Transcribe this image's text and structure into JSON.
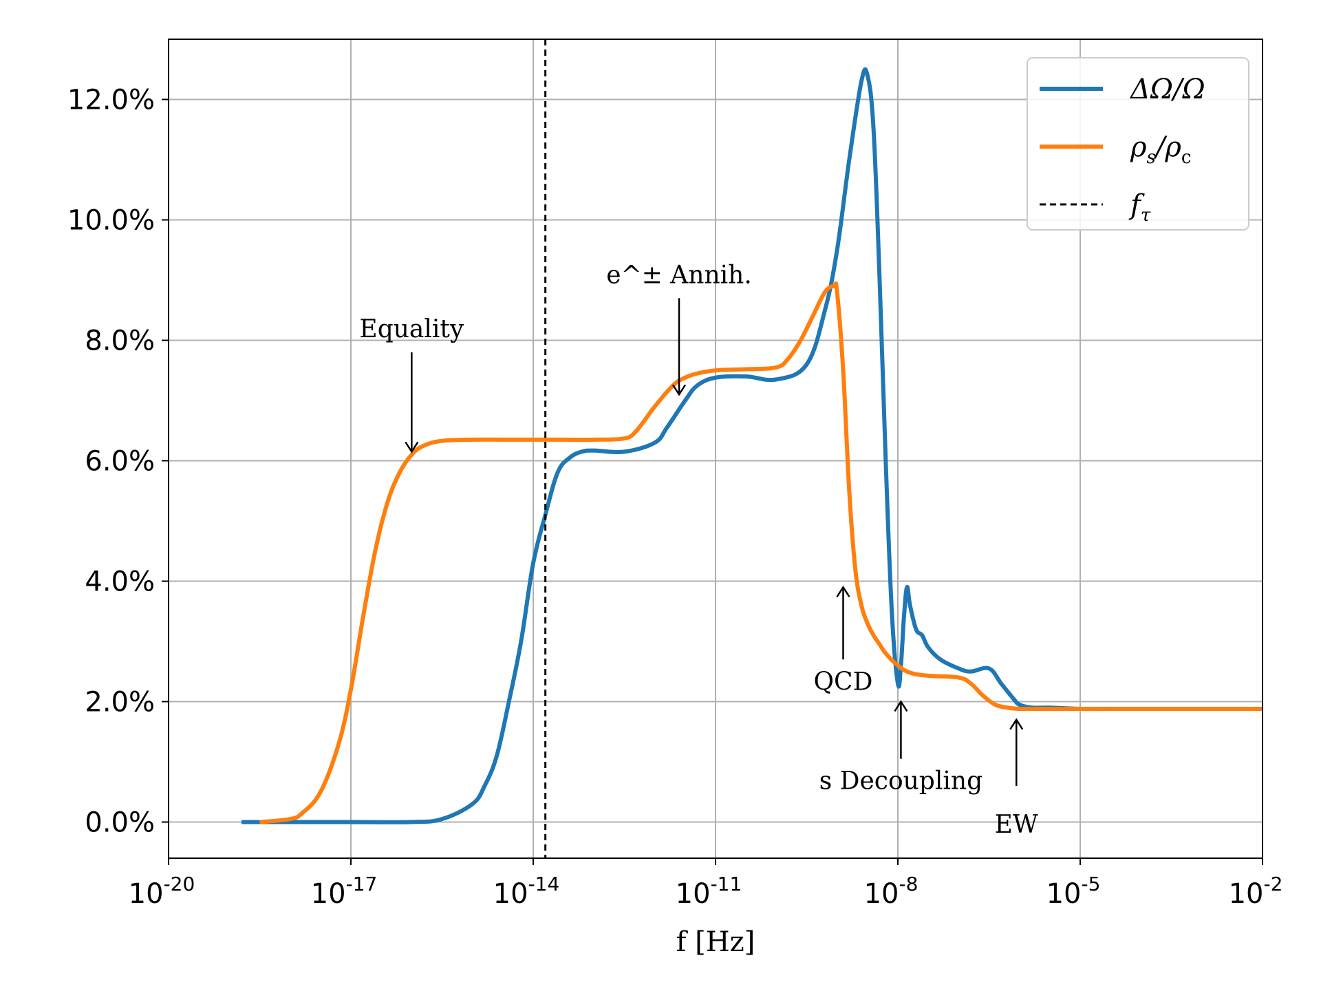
{
  "chart_data": {
    "type": "line",
    "xlabel": "f [Hz]",
    "xscale": "log",
    "xlim_exp": [
      -20,
      -2
    ],
    "x_ticks": [
      {
        "base": "10",
        "exp": "-20"
      },
      {
        "base": "10",
        "exp": "-17"
      },
      {
        "base": "10",
        "exp": "-14"
      },
      {
        "base": "10",
        "exp": "-11"
      },
      {
        "base": "10",
        "exp": "-8"
      },
      {
        "base": "10",
        "exp": "-5"
      },
      {
        "base": "10",
        "exp": "-2"
      }
    ],
    "ylim": [
      -0.6,
      13.0
    ],
    "y_ticks": [
      "0.0%",
      "2.0%",
      "4.0%",
      "6.0%",
      "8.0%",
      "10.0%",
      "12.0%"
    ],
    "grid": true,
    "legend_position": "top-right",
    "series": [
      {
        "name": "ΔΩ/Ω",
        "color": "#1f77b4",
        "x_log10": [
          -18.8,
          -17,
          -16,
          -15.5,
          -15,
          -14.8,
          -14.6,
          -14.4,
          -14.2,
          -14.0,
          -13.8,
          -13.6,
          -13.4,
          -13.2,
          -13.0,
          -12.5,
          -12.0,
          -11.8,
          -11.5,
          -11.3,
          -11.0,
          -10.5,
          -10.0,
          -9.5,
          -9.2,
          -9.0,
          -8.8,
          -8.6,
          -8.5,
          -8.4,
          -8.3,
          -8.2,
          -8.1,
          -8.0,
          -7.95,
          -7.9,
          -7.85,
          -7.8,
          -7.7,
          -7.6,
          -7.5,
          -7.3,
          -7.0,
          -6.8,
          -6.5,
          -6.3,
          -6.1,
          -6.0,
          -5.8,
          -5.5,
          -5.0,
          -4.5,
          -4.0,
          -3.0,
          -2.0
        ],
        "y": [
          0.0,
          0.0,
          0.0,
          0.05,
          0.3,
          0.6,
          1.1,
          2.0,
          3.0,
          4.3,
          5.1,
          5.8,
          6.05,
          6.15,
          6.17,
          6.15,
          6.3,
          6.55,
          7.0,
          7.25,
          7.38,
          7.4,
          7.35,
          7.6,
          8.5,
          9.5,
          11.0,
          12.3,
          12.4,
          11.5,
          9.0,
          6.0,
          3.5,
          2.3,
          2.6,
          3.4,
          3.9,
          3.6,
          3.2,
          3.1,
          2.9,
          2.7,
          2.55,
          2.5,
          2.55,
          2.3,
          2.05,
          1.95,
          1.9,
          1.9,
          1.88,
          1.88,
          1.88,
          1.88,
          1.88
        ]
      },
      {
        "name": "ρ_s/ρ_c",
        "color": "#ff7f0e",
        "x_log10": [
          -18.5,
          -18.0,
          -17.8,
          -17.5,
          -17.2,
          -17.0,
          -16.8,
          -16.6,
          -16.4,
          -16.2,
          -16.0,
          -15.8,
          -15.5,
          -15.0,
          -14.5,
          -14.0,
          -13.5,
          -13.0,
          -12.5,
          -12.3,
          -12.0,
          -11.7,
          -11.5,
          -11.3,
          -11.0,
          -10.5,
          -10.0,
          -9.8,
          -9.6,
          -9.4,
          -9.2,
          -9.05,
          -9.0,
          -8.9,
          -8.8,
          -8.7,
          -8.6,
          -8.5,
          -8.4,
          -8.3,
          -8.2,
          -8.0,
          -7.8,
          -7.5,
          -7.0,
          -6.8,
          -6.6,
          -6.4,
          -6.2,
          -6.0,
          -5.8,
          -5.5,
          -5.0,
          -4.0,
          -2.0
        ],
        "y": [
          0.0,
          0.05,
          0.15,
          0.5,
          1.3,
          2.2,
          3.4,
          4.5,
          5.3,
          5.8,
          6.1,
          6.25,
          6.33,
          6.35,
          6.35,
          6.35,
          6.35,
          6.35,
          6.37,
          6.5,
          6.9,
          7.25,
          7.38,
          7.45,
          7.5,
          7.52,
          7.55,
          7.7,
          8.0,
          8.4,
          8.8,
          8.9,
          8.8,
          7.5,
          5.5,
          4.2,
          3.6,
          3.3,
          3.1,
          2.95,
          2.8,
          2.6,
          2.48,
          2.43,
          2.4,
          2.3,
          2.1,
          1.95,
          1.9,
          1.88,
          1.88,
          1.88,
          1.88,
          1.88,
          1.88
        ]
      }
    ],
    "vline": {
      "name": "f_τ",
      "x_log10": -13.8,
      "style": "dashed",
      "color": "#000000"
    },
    "annotations": [
      {
        "text": "Equality",
        "x_log10": -16.0,
        "arrow_from_y": 7.8,
        "arrow_to_y": 6.15
      },
      {
        "text": "e^± Annih.",
        "x_log10": -11.6,
        "arrow_from_y": 8.7,
        "arrow_to_y": 7.1
      },
      {
        "text": "QCD",
        "x_log10": -8.9,
        "arrow_from_y": 2.7,
        "arrow_to_y": 3.9
      },
      {
        "text": "s Decoupling",
        "x_log10": -7.95,
        "arrow_from_y": 1.05,
        "arrow_to_y": 2.0
      },
      {
        "text": "EW",
        "x_log10": -6.05,
        "arrow_from_y": 0.6,
        "arrow_to_y": 1.7
      }
    ],
    "legend": [
      {
        "label_main": "ΔΩ/Ω",
        "sub": "",
        "label_rest": "",
        "color": "#1f77b4",
        "style": "solid"
      },
      {
        "label_main": "ρ",
        "sub": "s",
        "label_rest": "/ρ",
        "sub2": "c",
        "color": "#ff7f0e",
        "style": "solid"
      },
      {
        "label_main": "f",
        "sub": "τ",
        "label_rest": "",
        "color": "#000000",
        "style": "dashed"
      }
    ]
  }
}
